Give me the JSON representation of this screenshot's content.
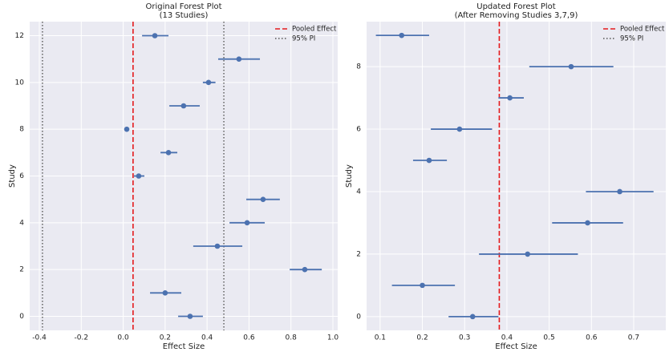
{
  "chart_data": [
    {
      "type": "forest",
      "title": [
        "Original Forest Plot",
        "(13 Studies)"
      ],
      "x_label": "Effect Size",
      "y_label": "Study",
      "xlim": [
        -0.446,
        1.023
      ],
      "ylim": [
        -0.6,
        12.6
      ],
      "xticks": [
        -0.4,
        -0.2,
        {
          "value": 0,
          "label": "0.0"
        },
        0.2,
        0.4,
        0.6,
        0.8,
        {
          "value": 1,
          "label": "1.0"
        }
      ],
      "yticks": [
        0,
        2,
        4,
        6,
        8,
        10,
        12
      ],
      "grid": true,
      "color": "#4c72b0",
      "y": [
        0,
        1,
        2,
        3,
        4,
        5,
        6,
        7,
        8,
        9,
        10,
        11,
        12
      ],
      "values": [
        0.319,
        0.2,
        0.866,
        0.449,
        0.591,
        0.667,
        0.074,
        0.216,
        0.017,
        0.288,
        0.407,
        0.552,
        0.151
      ],
      "ci_low": [
        0.262,
        0.128,
        0.794,
        0.334,
        0.507,
        0.587,
        0.051,
        0.178,
        0.017,
        0.22,
        0.38,
        0.453,
        0.09
      ],
      "ci_high": [
        0.38,
        0.277,
        0.947,
        0.568,
        0.675,
        0.747,
        0.101,
        0.258,
        0.017,
        0.365,
        0.44,
        0.652,
        0.216
      ],
      "reference_lines": [
        {
          "name": "Pooled Effect",
          "color": "#e41a1c",
          "style": "dashed",
          "values": [
            0.047
          ]
        },
        {
          "name": "95% PI",
          "color": "#555555",
          "style": "dotted",
          "values": [
            -0.385,
            0.48
          ]
        }
      ],
      "legend": "upper right"
    },
    {
      "type": "forest",
      "title": [
        "Updated Forest Plot",
        "(After Removing Studies 3,7,9)"
      ],
      "x_label": "Effect Size",
      "y_label": "Study",
      "xlim": [
        0.068,
        0.776
      ],
      "ylim": [
        -0.44,
        9.44
      ],
      "xticks": [
        0.1,
        0.2,
        0.3,
        0.4,
        0.5,
        0.6,
        0.7
      ],
      "yticks": [
        0,
        2,
        4,
        6,
        8
      ],
      "grid": true,
      "color": "#4c72b0",
      "y": [
        0,
        1,
        2,
        3,
        4,
        5,
        6,
        7,
        8,
        9
      ],
      "values": [
        0.319,
        0.2,
        0.449,
        0.591,
        0.667,
        0.216,
        0.288,
        0.407,
        0.552,
        0.151
      ],
      "ci_low": [
        0.262,
        0.128,
        0.334,
        0.507,
        0.587,
        0.178,
        0.22,
        0.38,
        0.453,
        0.09
      ],
      "ci_high": [
        0.38,
        0.277,
        0.568,
        0.675,
        0.747,
        0.258,
        0.365,
        0.44,
        0.652,
        0.216
      ],
      "reference_lines": [
        {
          "name": "Pooled Effect",
          "color": "#e41a1c",
          "style": "dashed",
          "values": [
            0.382
          ]
        },
        {
          "name": "95% PI",
          "color": "#555555",
          "style": "dotted",
          "values": []
        }
      ],
      "legend": "upper right"
    }
  ]
}
